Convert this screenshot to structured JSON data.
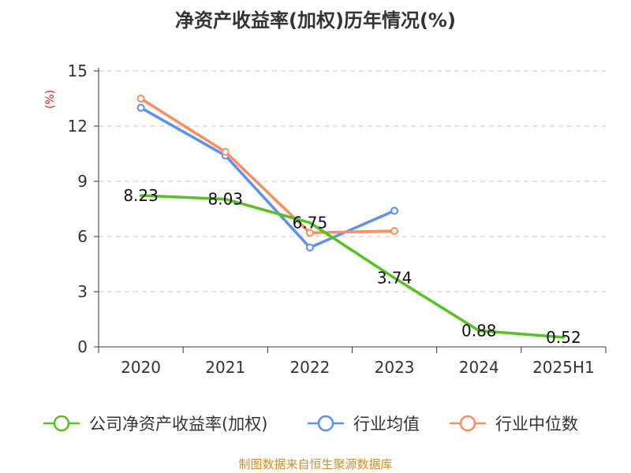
{
  "chart_data": {
    "type": "line",
    "title": "净资产收益率(加权)历年情况(%)",
    "ylabel": "(%)",
    "xlabel": "",
    "categories": [
      "2020",
      "2021",
      "2022",
      "2023",
      "2024",
      "2025H1"
    ],
    "ylim": [
      0,
      15
    ],
    "yticks": [
      0,
      3,
      6,
      9,
      12,
      15
    ],
    "grid": "horizontal dashed",
    "legend_position": "bottom",
    "series": [
      {
        "name": "公司净资产收益率(加权)",
        "color": "#52c41a",
        "values": [
          8.23,
          8.03,
          6.75,
          3.74,
          0.88,
          0.52
        ],
        "labels": [
          "8.23",
          "8.03",
          "6.75",
          "3.74",
          "0.88",
          "0.52"
        ],
        "markers": false
      },
      {
        "name": "行业均值",
        "color": "#5b8ff9",
        "values": [
          13.0,
          10.4,
          5.4,
          7.4,
          null,
          null
        ],
        "markers": true
      },
      {
        "name": "行业中位数",
        "color": "#ff8c5a",
        "values": [
          13.5,
          10.6,
          6.2,
          6.3,
          null,
          null
        ],
        "markers": true
      }
    ]
  },
  "footer": {
    "source": "制图数据来自恒生聚源数据库"
  }
}
